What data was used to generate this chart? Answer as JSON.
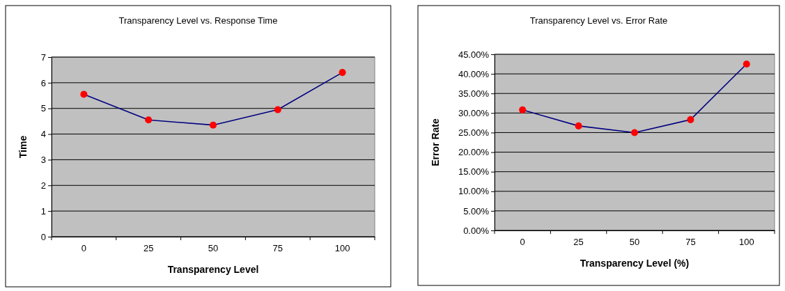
{
  "chart_data": [
    {
      "type": "line",
      "title": "Transparency Level vs. Response Time",
      "xlabel": "Transparency Level",
      "ylabel": "Time",
      "categories": [
        "0",
        "25",
        "50",
        "75",
        "100"
      ],
      "series": [
        {
          "color": "#000080",
          "colors": [
            "#ff0000",
            "#ff0000",
            "#ff0000",
            "#ff0000",
            "#ff0000"
          ],
          "values": [
            5.55,
            4.55,
            4.35,
            4.95,
            6.4
          ]
        }
      ],
      "ylim": [
        0,
        7
      ],
      "yticks": [
        0,
        1,
        2,
        3,
        4,
        5,
        6,
        7
      ],
      "grid": "y",
      "marker": "circle",
      "line_style": "solid"
    },
    {
      "type": "line",
      "title": "Transparency Level vs. Error Rate",
      "xlabel": "Transparency Level (%)",
      "ylabel": "Error Rate",
      "categories": [
        "0",
        "25",
        "50",
        "75",
        "100"
      ],
      "series": [
        {
          "color": "#000080",
          "colors": [
            "#ff0000",
            "#ff0000",
            "#ff0000",
            "#ff0000",
            "#ff0000"
          ],
          "values": [
            30.8,
            26.7,
            25.0,
            28.3,
            42.5
          ]
        }
      ],
      "ylim": [
        0,
        45
      ],
      "yticks": [
        {
          "value": 0,
          "label": "0.00%"
        },
        {
          "value": 5,
          "label": "5.00%"
        },
        {
          "value": 10,
          "label": "10.00%"
        },
        {
          "value": 15,
          "label": "15.00%"
        },
        {
          "value": 20,
          "label": "20.00%"
        },
        {
          "value": 25,
          "label": "25.00%"
        },
        {
          "value": 30,
          "label": "30.00%"
        },
        {
          "value": 35,
          "label": "35.00%"
        },
        {
          "value": 40,
          "label": "40.00%"
        },
        {
          "value": 45,
          "label": "45.00%"
        }
      ],
      "grid": "y",
      "marker": "circle",
      "line_style": "solid"
    }
  ]
}
